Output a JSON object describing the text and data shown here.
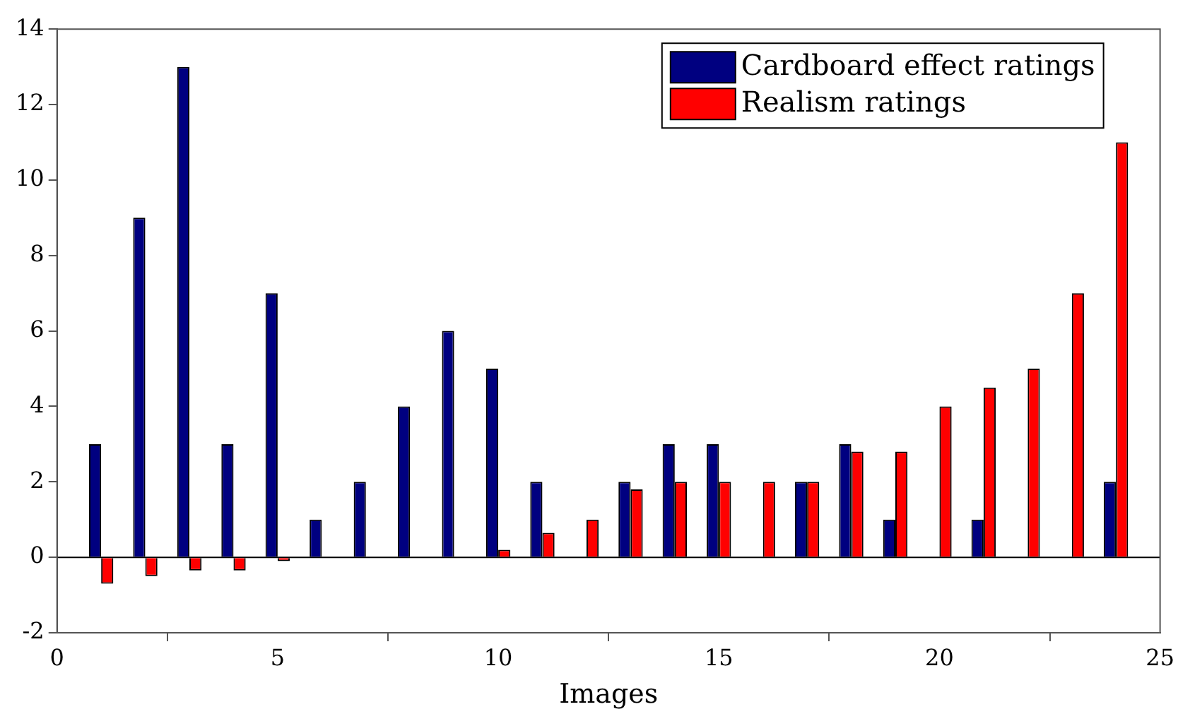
{
  "chart_data": {
    "type": "bar",
    "xlabel": "Images",
    "x": [
      1,
      2,
      3,
      4,
      5,
      6,
      7,
      8,
      9,
      10,
      11,
      12,
      13,
      14,
      15,
      16,
      17,
      18,
      19,
      20,
      21,
      22,
      23,
      24
    ],
    "series": [
      {
        "name": "Cardboard effect ratings",
        "color": "#000080",
        "values": [
          3,
          9,
          13,
          3,
          7,
          1,
          2,
          4,
          6,
          5,
          2,
          0,
          2,
          3,
          3,
          0,
          2,
          3,
          1,
          0,
          1,
          0,
          0,
          2
        ]
      },
      {
        "name": "Realism ratings",
        "color": "#ff0000",
        "values": [
          -0.7,
          -0.5,
          -0.35,
          -0.35,
          -0.1,
          0,
          0,
          0,
          0,
          0.2,
          0.65,
          1,
          1.8,
          2,
          2,
          2,
          2,
          2.8,
          2.8,
          4,
          4.5,
          5,
          7,
          11
        ]
      }
    ],
    "xlim": [
      0,
      25
    ],
    "xticks": [
      0,
      5,
      10,
      15,
      20,
      25
    ],
    "ylim": [
      -2,
      14
    ],
    "yticks": [
      -2,
      0,
      2,
      4,
      6,
      8,
      10,
      12,
      14
    ],
    "ref_lines": [
      {
        "axis": "y",
        "value": 0,
        "color": "#000000"
      }
    ],
    "grid": false,
    "legend": "top right"
  }
}
